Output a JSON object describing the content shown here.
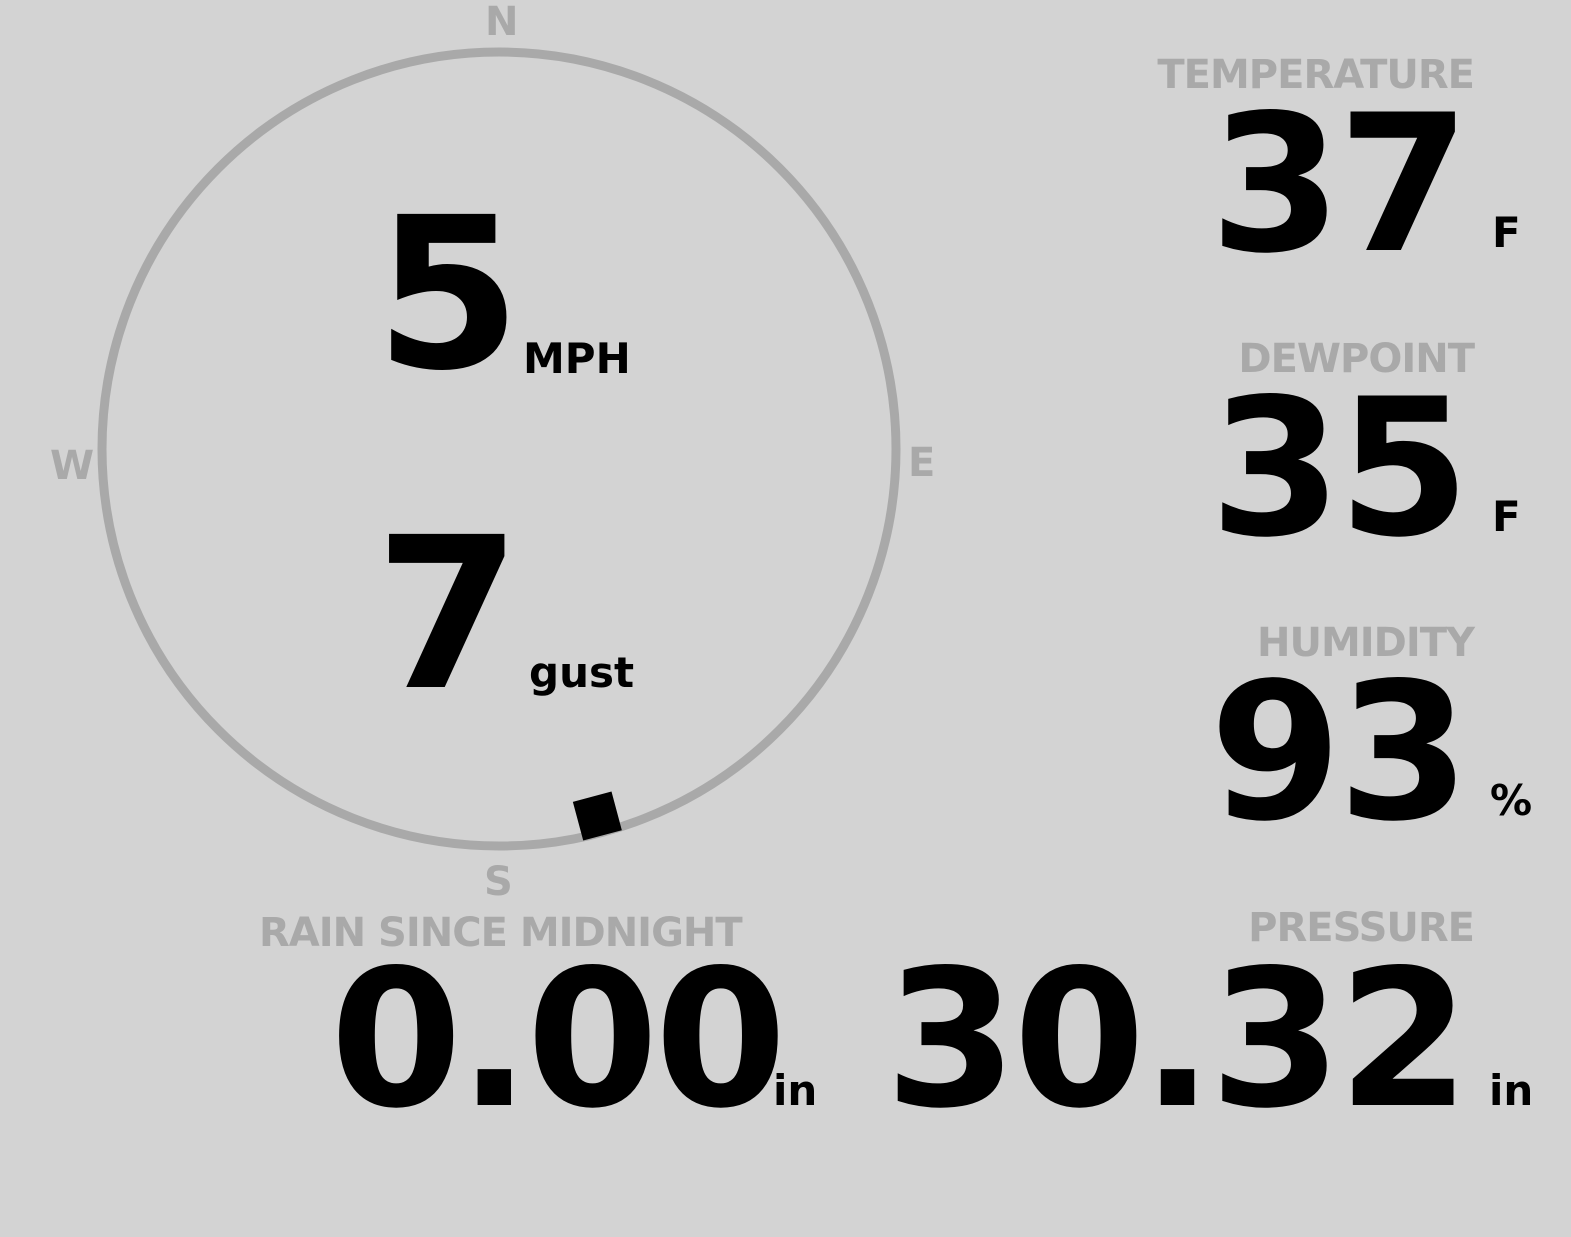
{
  "compass": {
    "cardinals": {
      "n": "N",
      "e": "E",
      "s": "S",
      "w": "W"
    },
    "wind_direction_deg": 165,
    "colors": {
      "ring": "#a9a9a9",
      "marker": "#000000",
      "background": "#d3d3d3"
    }
  },
  "wind": {
    "speed": "5",
    "speed_unit": "MPH",
    "gust": "7",
    "gust_unit": "gust"
  },
  "temperature": {
    "label": "TEMPERATURE",
    "value": "37",
    "unit": "F"
  },
  "dewpoint": {
    "label": "DEWPOINT",
    "value": "35",
    "unit": "F"
  },
  "humidity": {
    "label": "HUMIDITY",
    "value": "93",
    "unit": "%"
  },
  "rain": {
    "label": "RAIN SINCE MIDNIGHT",
    "value": "0.00",
    "unit": "in"
  },
  "pressure": {
    "label": "PRESSURE",
    "value": "30.32",
    "unit": "in"
  }
}
